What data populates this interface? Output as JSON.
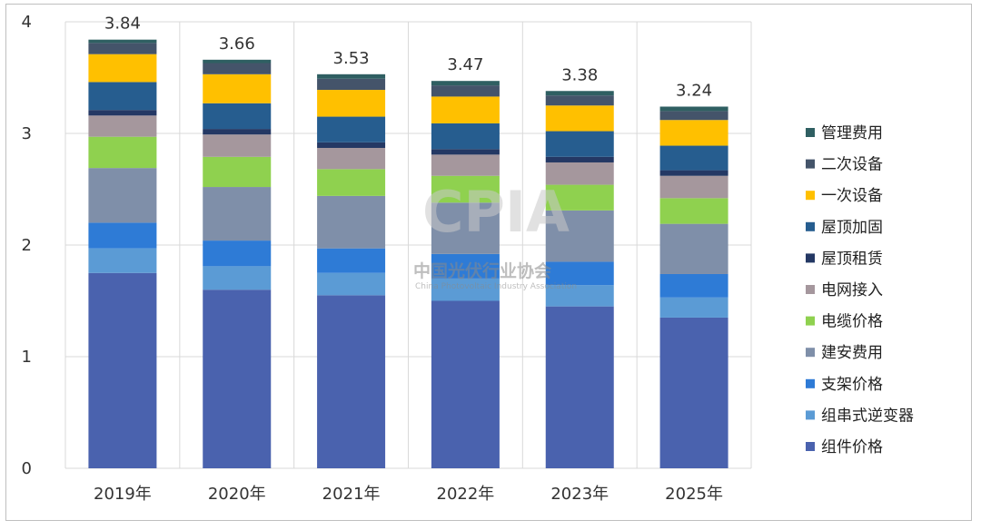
{
  "chart_data": {
    "type": "bar",
    "stacked": true,
    "categories": [
      "2019年",
      "2020年",
      "2021年",
      "2022年",
      "2023年",
      "2025年"
    ],
    "totals": [
      3.84,
      3.66,
      3.53,
      3.47,
      3.38,
      3.24
    ],
    "ylim": [
      0,
      4
    ],
    "yticks": [
      0,
      1,
      2,
      3,
      4
    ],
    "grid": true,
    "legend_position": "right",
    "series": [
      {
        "name": "组件价格",
        "color": "#4a62ae",
        "values": [
          1.75,
          1.6,
          1.55,
          1.5,
          1.45,
          1.35
        ]
      },
      {
        "name": "组串式逆变器",
        "color": "#5b9bd5",
        "values": [
          0.22,
          0.21,
          0.2,
          0.2,
          0.19,
          0.18
        ]
      },
      {
        "name": "支架价格",
        "color": "#2e7bd6",
        "values": [
          0.23,
          0.23,
          0.22,
          0.22,
          0.21,
          0.21
        ]
      },
      {
        "name": "建安费用",
        "color": "#7f8fa9",
        "values": [
          0.49,
          0.48,
          0.47,
          0.46,
          0.46,
          0.45
        ]
      },
      {
        "name": "电缆价格",
        "color": "#8fd14f",
        "values": [
          0.28,
          0.27,
          0.24,
          0.24,
          0.23,
          0.23
        ]
      },
      {
        "name": "电网接入",
        "color": "#a5979d",
        "values": [
          0.19,
          0.2,
          0.19,
          0.19,
          0.2,
          0.2
        ]
      },
      {
        "name": "屋顶租赁",
        "color": "#243864",
        "values": [
          0.05,
          0.05,
          0.05,
          0.05,
          0.05,
          0.05
        ]
      },
      {
        "name": "屋顶加固",
        "color": "#265d8f",
        "values": [
          0.25,
          0.23,
          0.23,
          0.23,
          0.23,
          0.22
        ]
      },
      {
        "name": "一次设备",
        "color": "#ffc000",
        "values": [
          0.25,
          0.26,
          0.24,
          0.24,
          0.23,
          0.23
        ]
      },
      {
        "name": "二次设备",
        "color": "#44546a",
        "values": [
          0.1,
          0.1,
          0.1,
          0.1,
          0.09,
          0.08
        ]
      },
      {
        "name": "管理费用",
        "color": "#2f5f62",
        "values": [
          0.03,
          0.03,
          0.04,
          0.04,
          0.04,
          0.04
        ]
      }
    ]
  },
  "watermark": {
    "logo": "CPIA",
    "name_cn": "中国光伏行业协会",
    "name_en": "China Photovoltaic Industry Association"
  }
}
